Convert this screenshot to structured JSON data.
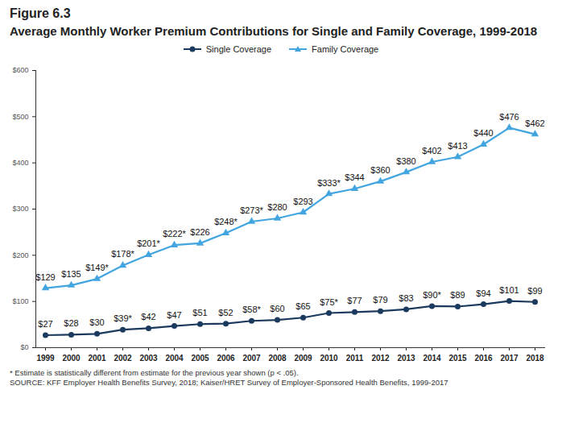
{
  "chart_data": {
    "type": "line",
    "title": "Figure 6.3",
    "subtitle": "Average Monthly Worker Premium Contributions for Single and Family Coverage, 1999-2018",
    "notes": [
      "* Estimate is statistically different from estimate for the previous year shown (p < .05).",
      "SOURCE: KFF Employer Health Benefits Survey, 2018; Kaiser/HRET Survey of Employer-Sponsored Health Benefits, 1999-2017"
    ],
    "categories": [
      "1999",
      "2000",
      "2001",
      "2002",
      "2003",
      "2004",
      "2005",
      "2006",
      "2007",
      "2008",
      "2009",
      "2010",
      "2011",
      "2012",
      "2013",
      "2014",
      "2015",
      "2016",
      "2017",
      "2018"
    ],
    "series": [
      {
        "name": "Single Coverage",
        "color": "#1b3a5e",
        "marker": "circle",
        "values": [
          27,
          28,
          30,
          39,
          42,
          47,
          51,
          52,
          58,
          60,
          65,
          75,
          77,
          79,
          83,
          90,
          89,
          94,
          101,
          99
        ],
        "value_labels": [
          "$27",
          "$28",
          "$30",
          "$39*",
          "$42",
          "$47",
          "$51",
          "$52",
          "$58*",
          "$60",
          "$65",
          "$75*",
          "$77",
          "$79",
          "$83",
          "$90*",
          "$89",
          "$94",
          "$101",
          "$99"
        ]
      },
      {
        "name": "Family Coverage",
        "color": "#42a5e0",
        "marker": "triangle",
        "values": [
          129,
          135,
          149,
          178,
          201,
          222,
          226,
          248,
          273,
          280,
          293,
          333,
          344,
          360,
          380,
          402,
          413,
          440,
          476,
          462
        ],
        "value_labels": [
          "$129",
          "$135",
          "$149*",
          "$178*",
          "$201*",
          "$222*",
          "$226",
          "$248*",
          "$273*",
          "$280",
          "$293",
          "$333*",
          "$344",
          "$360",
          "$380",
          "$402",
          "$413",
          "$440",
          "$476",
          "$462"
        ]
      }
    ],
    "ylim": [
      0,
      600
    ],
    "yticks": [
      {
        "value": 0,
        "label": "$0"
      },
      {
        "value": 100,
        "label": "$100"
      },
      {
        "value": 200,
        "label": "$200"
      },
      {
        "value": 300,
        "label": "$300"
      },
      {
        "value": 400,
        "label": "$400"
      },
      {
        "value": 500,
        "label": "$500"
      },
      {
        "value": 600,
        "label": "$600"
      }
    ],
    "grid": false,
    "legend": "top",
    "data_labels": true
  }
}
